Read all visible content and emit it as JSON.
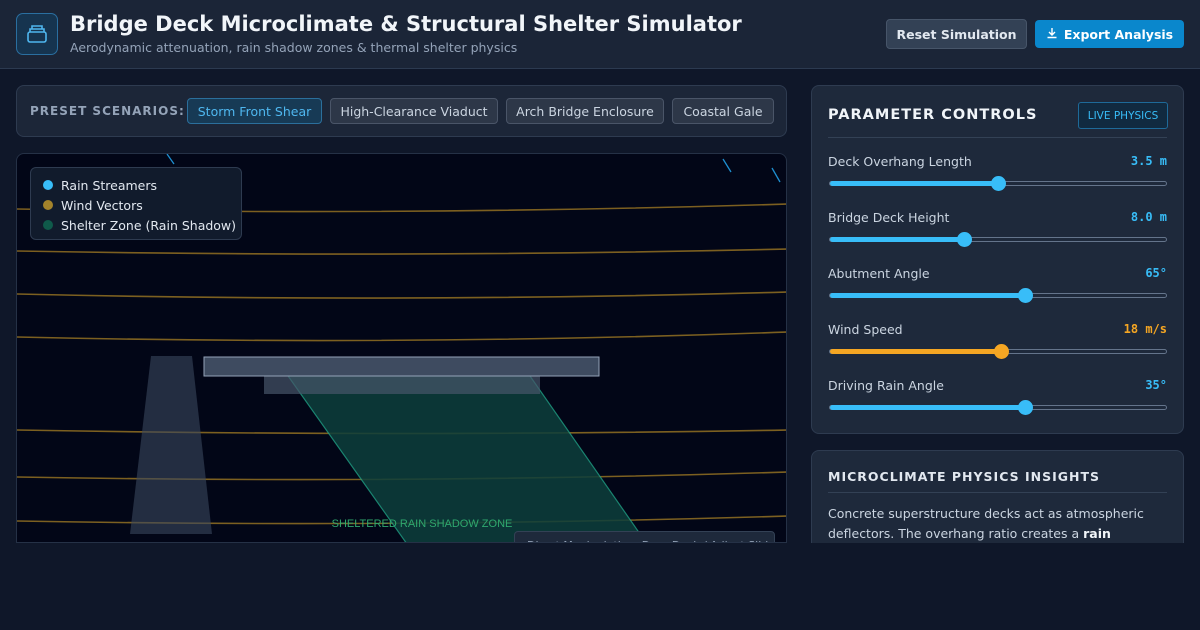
{
  "header": {
    "title": "Bridge Deck Microclimate & Structural Shelter Simulator",
    "subtitle": "Aerodynamic attenuation, rain shadow zones & thermal shelter physics",
    "reset_label": "Reset Simulation",
    "export_label": "Export Analysis",
    "logo_icon": "layers-icon",
    "export_icon": "download-icon",
    "accent_color": "#0a87cc"
  },
  "presets": {
    "label": "PRESET SCENARIOS:",
    "items": [
      {
        "label": "Storm Front Shear",
        "active": true
      },
      {
        "label": "High-Clearance Viaduct",
        "active": false
      },
      {
        "label": "Arch Bridge Enclosure",
        "active": false
      },
      {
        "label": "Coastal Gale",
        "active": false
      }
    ]
  },
  "simulation": {
    "legend": [
      {
        "label": "Rain Streamers",
        "color": "#38bdf8"
      },
      {
        "label": "Wind Vectors",
        "color": "#a3832b"
      },
      {
        "label": "Shelter Zone (Rain Shadow)",
        "color": "#0f5a4a"
      }
    ],
    "zone_label": "SHELTERED RAIN SHADOW ZONE",
    "tooltip": "Direct Manipulation: Drag Deck / Adjust Sliders"
  },
  "controls": {
    "title": "PARAMETER CONTROLS",
    "badge": "LIVE PHYSICS",
    "params": [
      {
        "label": "Deck Overhang Length",
        "value": "3.5 m",
        "fraction": 0.5,
        "color": "#38bdf8"
      },
      {
        "label": "Bridge Deck Height",
        "value": "8.0 m",
        "fraction": 0.4,
        "color": "#38bdf8"
      },
      {
        "label": "Abutment Angle",
        "value": "65°",
        "fraction": 0.58,
        "color": "#38bdf8"
      },
      {
        "label": "Wind Speed",
        "value": "18 m/s",
        "fraction": 0.51,
        "color": "#f5a623"
      },
      {
        "label": "Driving Rain Angle",
        "value": "35°",
        "fraction": 0.58,
        "color": "#38bdf8"
      }
    ]
  },
  "insights": {
    "title": "MICROCLIMATE PHYSICS INSIGHTS",
    "text_lead": "Concrete superstructure decks act as atmospheric deflectors. The overhang ratio creates a ",
    "text_bold": "rain shadow"
  }
}
